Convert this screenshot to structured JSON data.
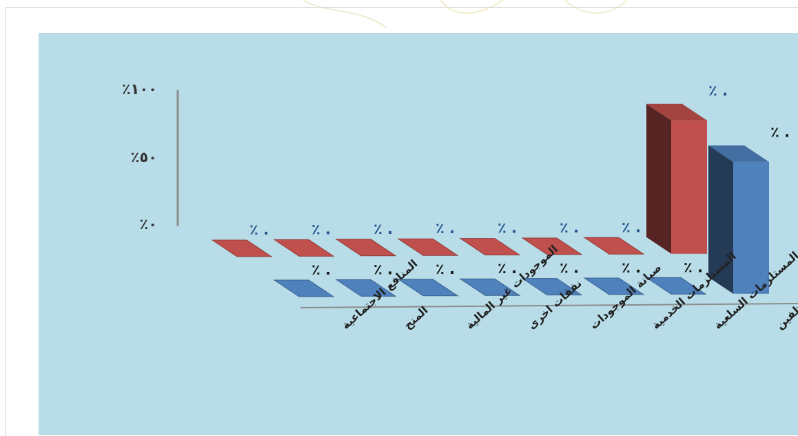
{
  "chart_data": {
    "type": "bar",
    "categories": [
      "المنافع الاجتماعية",
      "المنح",
      "الموجودات غير المالية",
      "نفقات اخرى",
      "صيانة الموجودات",
      "المستلزمات الخدمية",
      "المستلزمات السلعية",
      "تعويضات الموظفين"
    ],
    "series": [
      {
        "values": [
          0,
          0,
          0,
          0,
          0,
          0,
          0.5,
          84
        ],
        "data_labels": [
          "٪ .",
          "٪ .",
          "٪ .",
          "٪ .",
          "٪ .",
          "٪ .",
          "٪ .",
          "٪ ."
        ],
        "color": "#c0504d"
      },
      {
        "values": [
          0,
          0,
          0,
          0,
          0,
          0,
          1,
          78
        ],
        "data_labels": [
          "٪ .",
          "٪ .",
          "٪ .",
          "٪ .",
          "٪ .",
          "٪ .",
          "٪ .",
          "٪ ."
        ],
        "color": "#4f81bd"
      }
    ],
    "ylim": [
      0,
      100
    ],
    "yticks": [
      "٪٠",
      "٪٥٠",
      "٪١٠٠"
    ],
    "grid": false,
    "colors": {
      "panel": "#b8dde8",
      "axis": "#8c8c8c",
      "label_dark": "#1f4e8c",
      "label_black": "#111111"
    }
  }
}
